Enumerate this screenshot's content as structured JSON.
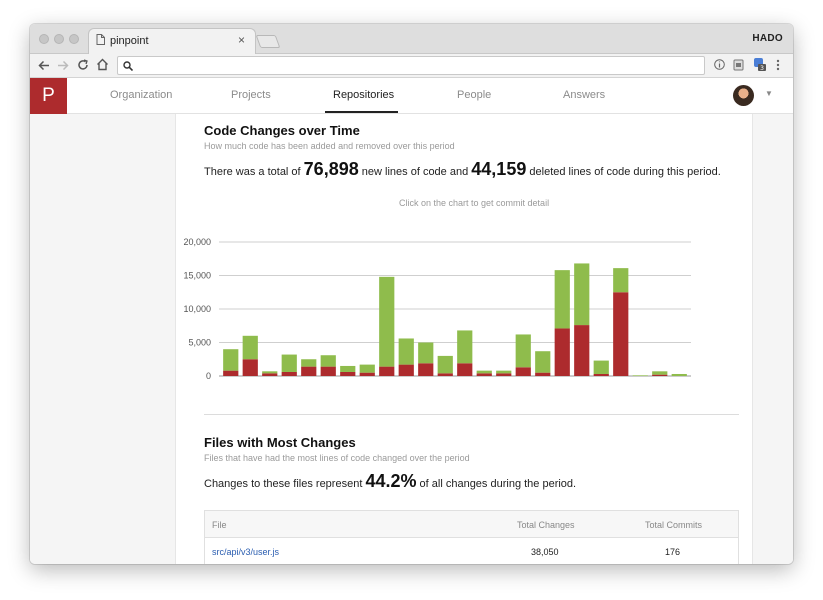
{
  "browser": {
    "tab_title": "pinpoint",
    "tab_close": "×",
    "profile_name": "HADO",
    "url": ""
  },
  "app": {
    "logo_letter": "P",
    "nav": [
      {
        "label": "Organization",
        "active": false
      },
      {
        "label": "Projects",
        "active": false
      },
      {
        "label": "Repositories",
        "active": true
      },
      {
        "label": "People",
        "active": false
      },
      {
        "label": "Answers",
        "active": false
      }
    ]
  },
  "code_changes": {
    "title": "Code Changes over Time",
    "subtitle": "How much code has been added and removed over this period",
    "stat_prefix": "There was a total of",
    "added_total": "76,898",
    "stat_middle": "new lines of code and",
    "deleted_total": "44,159",
    "stat_suffix": "deleted lines of code during this period.",
    "chart_hint": "Click on the chart to get commit detail"
  },
  "chart_data": {
    "type": "bar",
    "stacked": true,
    "ylim": [
      0,
      20000
    ],
    "yticks": [
      "20,000",
      "15,000",
      "10,000",
      "5,000",
      "0"
    ],
    "ytick_values": [
      20000,
      15000,
      10000,
      5000,
      0
    ],
    "grid": true,
    "series": [
      {
        "color": "#ad2b2d",
        "values": [
          800,
          2500,
          400,
          600,
          1400,
          1400,
          600,
          500,
          1400,
          1700,
          1900,
          400,
          1900,
          400,
          400,
          1300,
          500,
          7100,
          7600,
          300,
          12500,
          0,
          200,
          0
        ]
      },
      {
        "color": "#8fbc4c",
        "values": [
          3200,
          3500,
          300,
          2600,
          1100,
          1700,
          900,
          1200,
          13400,
          3900,
          3100,
          2600,
          4900,
          400,
          400,
          4900,
          3200,
          8700,
          9200,
          2000,
          3600,
          100,
          500,
          300
        ]
      }
    ]
  },
  "files": {
    "title": "Files with Most Changes",
    "subtitle": "Files that have had the most lines of code changed over the period",
    "stat_prefix": "Changes to these files represent",
    "percent": "44.2%",
    "stat_suffix": "of all changes during the period.",
    "table": {
      "headers": [
        "File",
        "Total Changes",
        "Total Commits"
      ],
      "rows": [
        {
          "file": "src/api/v3/user.js",
          "total_changes": "38,050",
          "total_commits": "176"
        }
      ]
    }
  }
}
